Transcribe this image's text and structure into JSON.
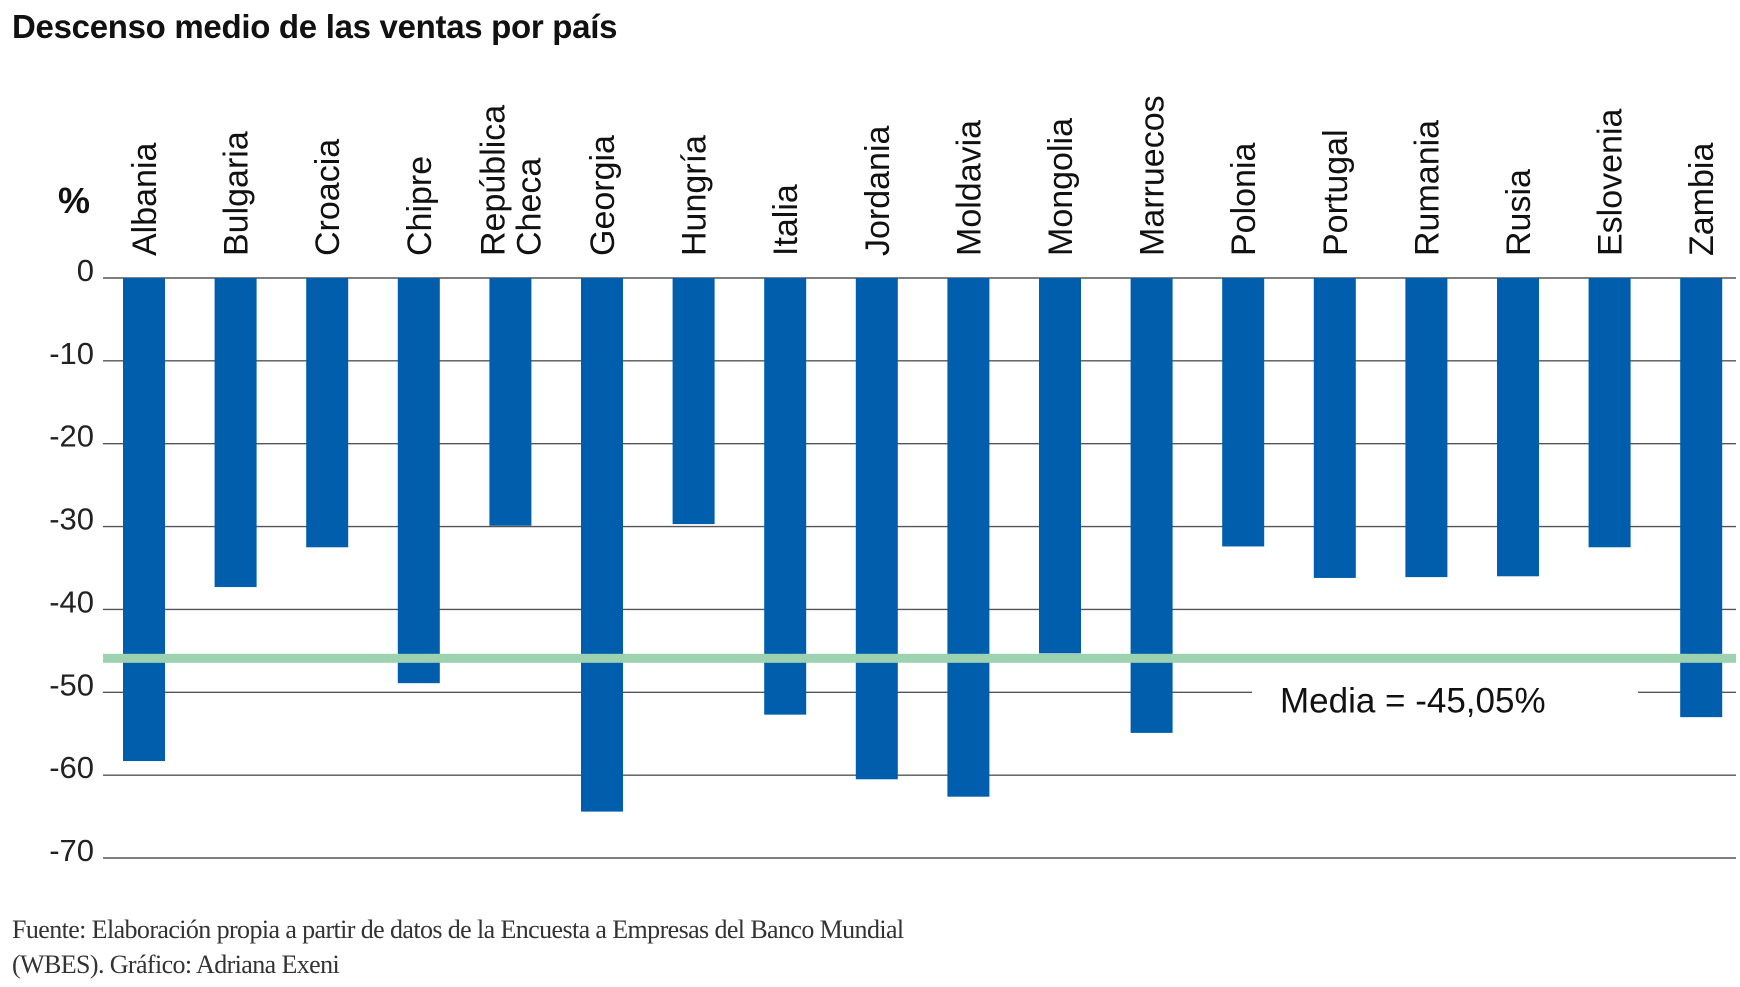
{
  "chart_data": {
    "type": "bar",
    "title": "Descenso medio de las ventas por país",
    "ylabel": "%",
    "xlabel": "",
    "categories": [
      "Albania",
      "Bulgaria",
      "Croacia",
      "Chipre",
      "República Checa",
      "Georgia",
      "Hungría",
      "Italia",
      "Jordania",
      "Moldavia",
      "Mongolia",
      "Marruecos",
      "Polonia",
      "Portugal",
      "Rumania",
      "Rusia",
      "Eslovenia",
      "Zambia"
    ],
    "category_lines": [
      [
        "Albania"
      ],
      [
        "Bulgaria"
      ],
      [
        "Croacia"
      ],
      [
        "Chipre"
      ],
      [
        "República",
        "Checa"
      ],
      [
        "Georgia"
      ],
      [
        "Hungría"
      ],
      [
        "Italia"
      ],
      [
        "Jordania"
      ],
      [
        "Moldavia"
      ],
      [
        "Mongolia"
      ],
      [
        "Marruecos"
      ],
      [
        "Polonia"
      ],
      [
        "Portugal"
      ],
      [
        "Rumania"
      ],
      [
        "Rusia"
      ],
      [
        "Eslovenia"
      ],
      [
        "Zambia"
      ]
    ],
    "values": [
      -58.3,
      -37.3,
      -32.5,
      -48.9,
      -29.9,
      -64.4,
      -29.7,
      -52.7,
      -60.5,
      -62.6,
      -45.3,
      -54.9,
      -32.4,
      -36.2,
      -36.1,
      -36.0,
      -32.5,
      -53.0
    ],
    "ylim": [
      -70,
      0
    ],
    "yticks": [
      0,
      -10,
      -20,
      -30,
      -40,
      -50,
      -60,
      -70
    ],
    "ytick_labels": [
      "0",
      "-10",
      "-20",
      "-30",
      "-40",
      "-50",
      "-60",
      "-70"
    ],
    "grid": true,
    "reference_line": {
      "value": -45.05,
      "label": "Media = -45,05%"
    },
    "colors": {
      "bar": "#005EAD",
      "mean_line": "#9DD2B1",
      "grid": "#555555"
    }
  },
  "source": {
    "line1": "Fuente: Elaboración propia a partir de datos de la Encuesta a Empresas del Banco Mundial",
    "line2": "(WBES). Gráfico: Adriana Exeni"
  }
}
